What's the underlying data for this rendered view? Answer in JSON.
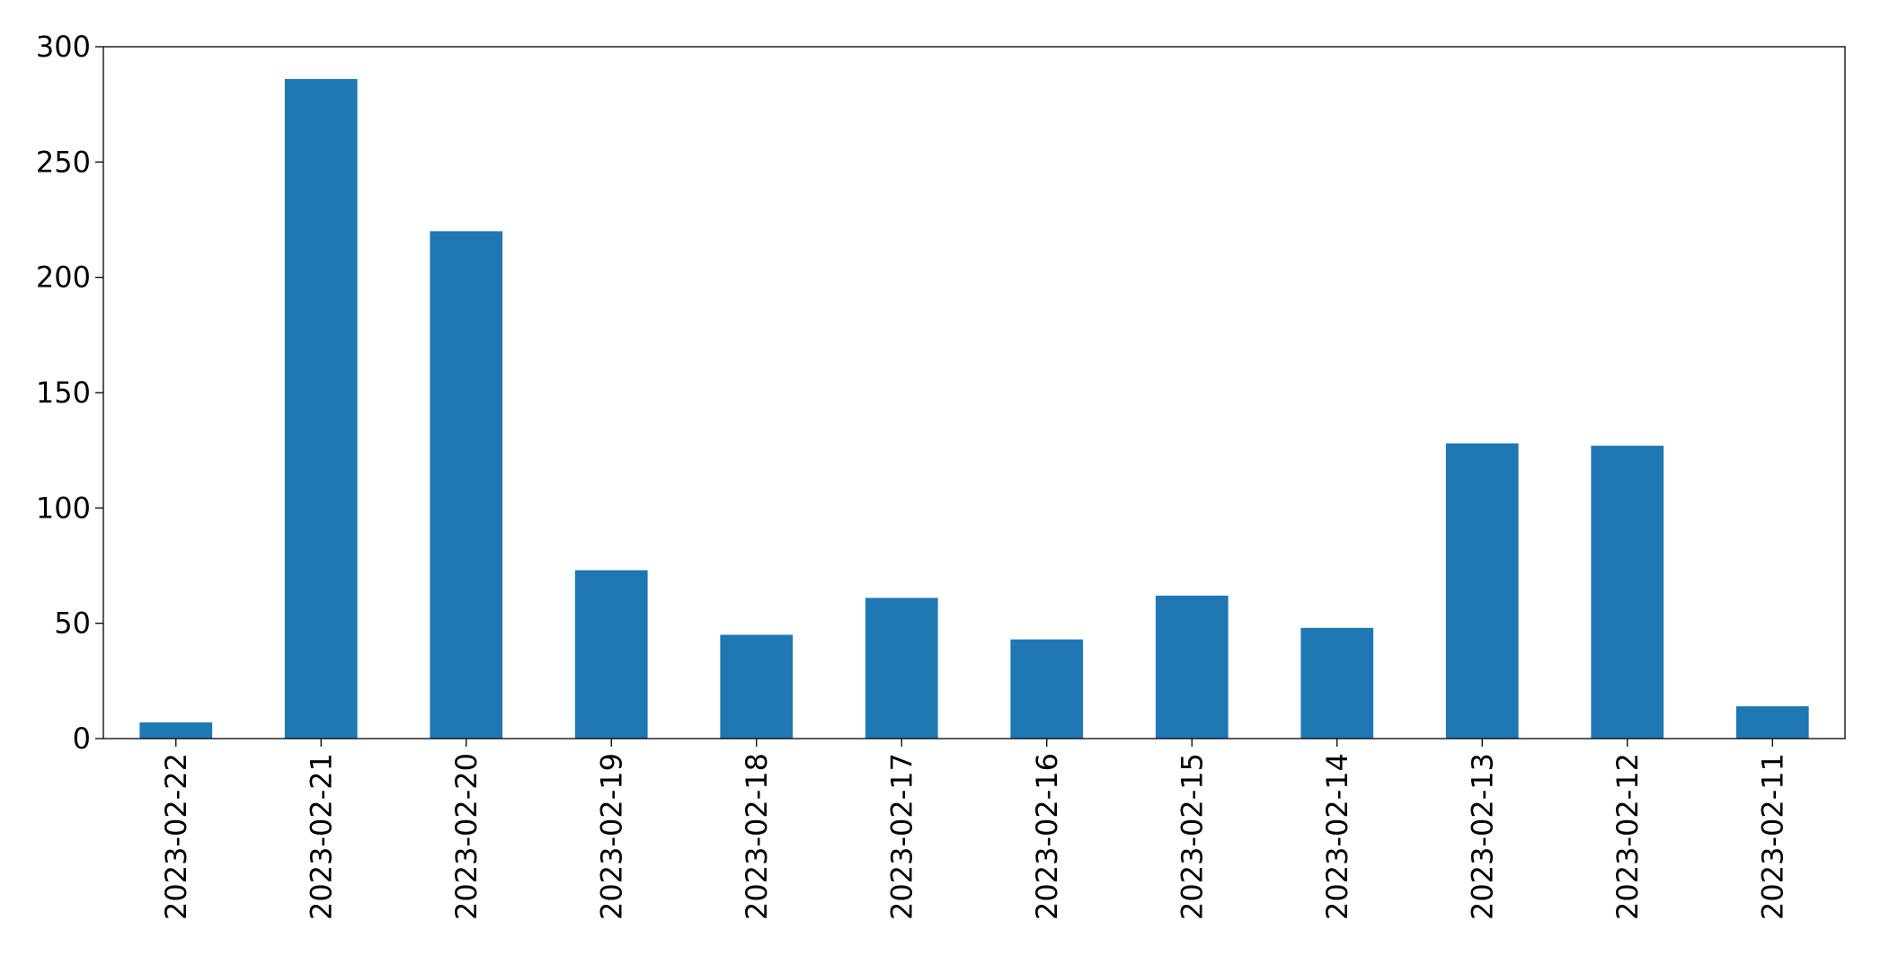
{
  "chart_data": {
    "type": "bar",
    "categories": [
      "2023-02-22",
      "2023-02-21",
      "2023-02-20",
      "2023-02-19",
      "2023-02-18",
      "2023-02-17",
      "2023-02-16",
      "2023-02-15",
      "2023-02-14",
      "2023-02-13",
      "2023-02-12",
      "2023-02-11"
    ],
    "values": [
      7,
      286,
      220,
      73,
      45,
      61,
      43,
      62,
      48,
      128,
      127,
      14
    ],
    "color": "#1f77b4",
    "ylim": [
      0,
      300
    ],
    "yticks": [
      0,
      50,
      100,
      150,
      200,
      250,
      300
    ],
    "grid": false
  }
}
